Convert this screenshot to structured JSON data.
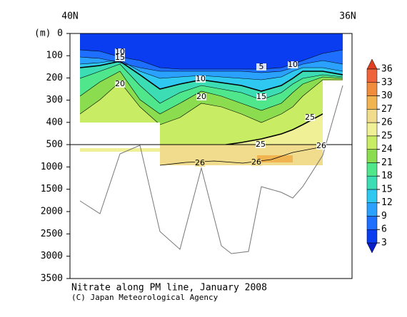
{
  "chart_data": {
    "type": "contour",
    "title": "Nitrate along PM line, January 2008",
    "credit": "(C) Japan Meteorological Agency",
    "x_left_label": "40N",
    "x_right_label": "36N",
    "ylabel": "(m)",
    "ylim": [
      0,
      3500
    ],
    "yticks": [
      0,
      100,
      200,
      300,
      400,
      500,
      1000,
      1500,
      2000,
      2500,
      3000,
      3500
    ],
    "colorbar": {
      "ticks": [
        3,
        6,
        9,
        12,
        15,
        18,
        21,
        24,
        25,
        26,
        27,
        30,
        33,
        36
      ],
      "colors": [
        "#0a1ec8",
        "#0a3cf0",
        "#1e6eff",
        "#2aa0ff",
        "#2ec8f0",
        "#3cdcb4",
        "#50e68c",
        "#8cdc50",
        "#c8ec64",
        "#f0f096",
        "#f0dc8c",
        "#f0b450",
        "#f08c3c",
        "#f0643c",
        "#e04020"
      ]
    },
    "contour_labels": [
      10,
      15,
      5,
      10,
      10,
      20,
      20,
      15,
      25,
      25,
      26,
      26,
      26
    ]
  }
}
